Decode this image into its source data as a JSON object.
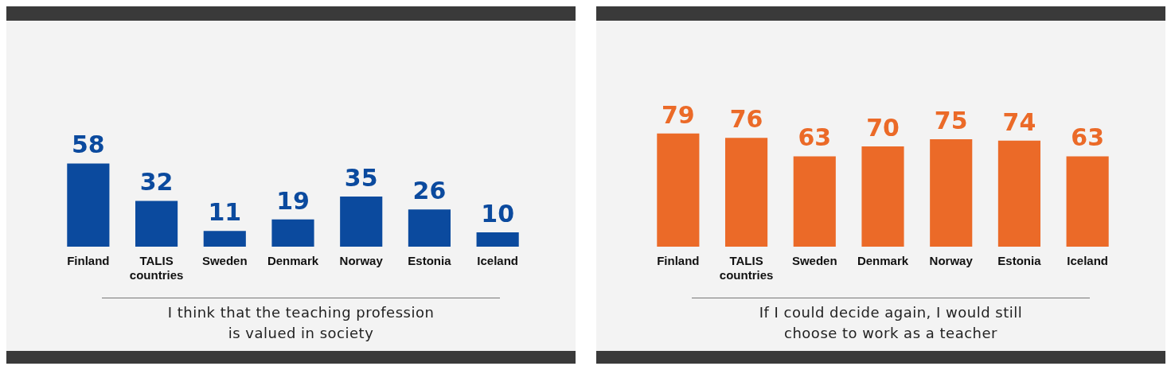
{
  "chart_data": [
    {
      "type": "bar",
      "title": "I think that the teaching profession is valued in society",
      "categories": [
        "Finland",
        "TALIS countries",
        "Sweden",
        "Denmark",
        "Norway",
        "Estonia",
        "Iceland"
      ],
      "values": [
        58,
        32,
        11,
        19,
        35,
        26,
        10
      ],
      "color": "#0b4a9e",
      "data_labels": true
    },
    {
      "type": "bar",
      "title": "If I could decide again, I would still choose to work as a teacher",
      "categories": [
        "Finland",
        "TALIS countries",
        "Sweden",
        "Denmark",
        "Norway",
        "Estonia",
        "Iceland"
      ],
      "values": [
        79,
        76,
        63,
        70,
        75,
        74,
        63
      ],
      "color": "#eb6a28",
      "data_labels": true
    }
  ]
}
